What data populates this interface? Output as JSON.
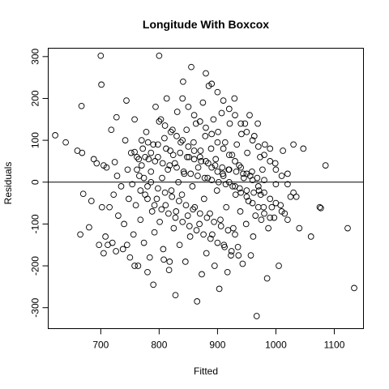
{
  "chart_data": {
    "type": "scatter",
    "title": "Longitude With Boxcox",
    "xlabel": "Fitted",
    "ylabel": "Residuals",
    "xlim": [
      610,
      1150
    ],
    "ylim": [
      -350,
      320
    ],
    "x_ticks": [
      700,
      800,
      900,
      1000,
      1100
    ],
    "y_ticks": [
      -300,
      -200,
      -100,
      0,
      100,
      200,
      300
    ],
    "x_tick_labels": [
      "700",
      "800",
      "900",
      "1000",
      "1100"
    ],
    "y_tick_labels": [
      "-300",
      "-200",
      "-100",
      "0",
      "100",
      "200",
      "300"
    ],
    "reference_line_y": 0,
    "grid": false,
    "marker": "open-circle",
    "points": [
      [
        622,
        112
      ],
      [
        640,
        95
      ],
      [
        660,
        75
      ],
      [
        665,
        -125
      ],
      [
        667,
        182
      ],
      [
        668,
        70
      ],
      [
        670,
        -28
      ],
      [
        680,
        -108
      ],
      [
        684,
        -45
      ],
      [
        688,
        55
      ],
      [
        693,
        45
      ],
      [
        697,
        -150
      ],
      [
        700,
        302
      ],
      [
        701,
        233
      ],
      [
        702,
        -60
      ],
      [
        705,
        40
      ],
      [
        708,
        -130
      ],
      [
        710,
        35
      ],
      [
        715,
        -60
      ],
      [
        718,
        125
      ],
      [
        720,
        -145
      ],
      [
        722,
        -30
      ],
      [
        724,
        48
      ],
      [
        727,
        155
      ],
      [
        728,
        15
      ],
      [
        730,
        -80
      ],
      [
        735,
        -10
      ],
      [
        738,
        -160
      ],
      [
        740,
        -100
      ],
      [
        742,
        100
      ],
      [
        744,
        195
      ],
      [
        746,
        30
      ],
      [
        748,
        -40
      ],
      [
        750,
        -180
      ],
      [
        752,
        70
      ],
      [
        754,
        -5
      ],
      [
        756,
        -125
      ],
      [
        758,
        150
      ],
      [
        760,
        -55
      ],
      [
        762,
        60
      ],
      [
        764,
        -200
      ],
      [
        766,
        15
      ],
      [
        768,
        -90
      ],
      [
        770,
        40
      ],
      [
        772,
        80
      ],
      [
        774,
        -145
      ],
      [
        776,
        -30
      ],
      [
        778,
        120
      ],
      [
        780,
        -10
      ],
      [
        782,
        55
      ],
      [
        784,
        -180
      ],
      [
        786,
        25
      ],
      [
        788,
        -70
      ],
      [
        790,
        90
      ],
      [
        792,
        -120
      ],
      [
        794,
        180
      ],
      [
        796,
        -40
      ],
      [
        798,
        60
      ],
      [
        800,
        302
      ],
      [
        801,
        -95
      ],
      [
        803,
        150
      ],
      [
        805,
        10
      ],
      [
        807,
        -160
      ],
      [
        809,
        105
      ],
      [
        811,
        -55
      ],
      [
        813,
        200
      ],
      [
        815,
        30
      ],
      [
        817,
        -210
      ],
      [
        819,
        75
      ],
      [
        821,
        -20
      ],
      [
        823,
        125
      ],
      [
        825,
        -110
      ],
      [
        827,
        45
      ],
      [
        829,
        -70
      ],
      [
        831,
        168
      ],
      [
        833,
        0
      ],
      [
        835,
        -150
      ],
      [
        837,
        95
      ],
      [
        839,
        -30
      ],
      [
        841,
        240
      ],
      [
        843,
        20
      ],
      [
        845,
        -190
      ],
      [
        847,
        125
      ],
      [
        849,
        -80
      ],
      [
        851,
        60
      ],
      [
        853,
        -130
      ],
      [
        855,
        275
      ],
      [
        857,
        -10
      ],
      [
        859,
        95
      ],
      [
        861,
        -60
      ],
      [
        863,
        140
      ],
      [
        865,
        -285
      ],
      [
        867,
        35
      ],
      [
        869,
        -100
      ],
      [
        871,
        75
      ],
      [
        873,
        -220
      ],
      [
        875,
        190
      ],
      [
        877,
        -40
      ],
      [
        879,
        110
      ],
      [
        881,
        -170
      ],
      [
        883,
        10
      ],
      [
        885,
        230
      ],
      [
        887,
        -75
      ],
      [
        889,
        80
      ],
      [
        891,
        -125
      ],
      [
        893,
        150
      ],
      [
        895,
        -200
      ],
      [
        897,
        55
      ],
      [
        899,
        -20
      ],
      [
        901,
        120
      ],
      [
        903,
        -255
      ],
      [
        905,
        -90
      ],
      [
        907,
        165
      ],
      [
        909,
        20
      ],
      [
        911,
        -150
      ],
      [
        913,
        95
      ],
      [
        915,
        -60
      ],
      [
        917,
        -215
      ],
      [
        919,
        30
      ],
      [
        921,
        140
      ],
      [
        923,
        -175
      ],
      [
        925,
        65
      ],
      [
        927,
        -110
      ],
      [
        929,
        200
      ],
      [
        931,
        -30
      ],
      [
        933,
        90
      ],
      [
        935,
        -155
      ],
      [
        937,
        40
      ],
      [
        939,
        -70
      ],
      [
        941,
        115
      ],
      [
        943,
        -195
      ],
      [
        945,
        10
      ],
      [
        947,
        140
      ],
      [
        949,
        -100
      ],
      [
        951,
        70
      ],
      [
        953,
        -45
      ],
      [
        955,
        160
      ],
      [
        957,
        -175
      ],
      [
        959,
        25
      ],
      [
        961,
        -130
      ],
      [
        963,
        110
      ],
      [
        965,
        -80
      ],
      [
        967,
        -320
      ],
      [
        969,
        140
      ],
      [
        971,
        -20
      ],
      [
        973,
        60
      ],
      [
        975,
        -90
      ],
      [
        977,
        30
      ],
      [
        979,
        -60
      ],
      [
        981,
        90
      ],
      [
        985,
        -230
      ],
      [
        987,
        -110
      ],
      [
        990,
        80
      ],
      [
        993,
        -60
      ],
      [
        997,
        -85
      ],
      [
        999,
        45
      ],
      [
        1005,
        -200
      ],
      [
        1008,
        -55
      ],
      [
        1012,
        75
      ],
      [
        1015,
        -75
      ],
      [
        1020,
        20
      ],
      [
        1025,
        -35
      ],
      [
        1030,
        90
      ],
      [
        1035,
        -35
      ],
      [
        1047,
        80
      ],
      [
        1075,
        -60
      ],
      [
        1077,
        -62
      ],
      [
        1085,
        40
      ],
      [
        1123,
        -110
      ],
      [
        1134,
        -253
      ],
      [
        705,
        -170
      ],
      [
        712,
        -150
      ],
      [
        726,
        -165
      ],
      [
        745,
        -150
      ],
      [
        758,
        -200
      ],
      [
        780,
        -215
      ],
      [
        790,
        -245
      ],
      [
        808,
        -185
      ],
      [
        818,
        -190
      ],
      [
        828,
        -270
      ],
      [
        758,
        72
      ],
      [
        765,
        55
      ],
      [
        770,
        100
      ],
      [
        776,
        60
      ],
      [
        781,
        95
      ],
      [
        786,
        70
      ],
      [
        793,
        50
      ],
      [
        798,
        90
      ],
      [
        806,
        45
      ],
      [
        812,
        80
      ],
      [
        818,
        40
      ],
      [
        824,
        65
      ],
      [
        830,
        35
      ],
      [
        836,
        70
      ],
      [
        842,
        25
      ],
      [
        848,
        60
      ],
      [
        854,
        20
      ],
      [
        860,
        55
      ],
      [
        866,
        15
      ],
      [
        872,
        50
      ],
      [
        878,
        10
      ],
      [
        884,
        45
      ],
      [
        890,
        5
      ],
      [
        896,
        40
      ],
      [
        902,
        0
      ],
      [
        908,
        35
      ],
      [
        914,
        -5
      ],
      [
        920,
        30
      ],
      [
        926,
        -10
      ],
      [
        932,
        25
      ],
      [
        938,
        -15
      ],
      [
        944,
        20
      ],
      [
        950,
        -20
      ],
      [
        956,
        15
      ],
      [
        962,
        -25
      ],
      [
        968,
        10
      ],
      [
        974,
        -30
      ],
      [
        980,
        5
      ],
      [
        990,
        -40
      ],
      [
        1000,
        -5
      ],
      [
        762,
        30
      ],
      [
        768,
        -20
      ],
      [
        774,
        10
      ],
      [
        780,
        -40
      ],
      [
        786,
        0
      ],
      [
        792,
        -55
      ],
      [
        798,
        -15
      ],
      [
        804,
        -65
      ],
      [
        810,
        -25
      ],
      [
        816,
        -75
      ],
      [
        822,
        -35
      ],
      [
        828,
        -85
      ],
      [
        834,
        -45
      ],
      [
        840,
        -95
      ],
      [
        846,
        -55
      ],
      [
        852,
        -105
      ],
      [
        858,
        -65
      ],
      [
        864,
        -115
      ],
      [
        870,
        -75
      ],
      [
        876,
        -125
      ],
      [
        882,
        -85
      ],
      [
        888,
        -135
      ],
      [
        894,
        -95
      ],
      [
        900,
        -145
      ],
      [
        906,
        -105
      ],
      [
        912,
        -155
      ],
      [
        918,
        -115
      ],
      [
        924,
        -165
      ],
      [
        930,
        -125
      ],
      [
        936,
        -175
      ],
      [
        800,
        145
      ],
      [
        810,
        135
      ],
      [
        820,
        120
      ],
      [
        830,
        110
      ],
      [
        840,
        100
      ],
      [
        850,
        85
      ],
      [
        860,
        75
      ],
      [
        870,
        60
      ],
      [
        880,
        50
      ],
      [
        890,
        35
      ],
      [
        900,
        25
      ],
      [
        910,
        15
      ],
      [
        920,
        0
      ],
      [
        930,
        -10
      ],
      [
        940,
        -25
      ],
      [
        950,
        -35
      ],
      [
        960,
        -50
      ],
      [
        970,
        -60
      ],
      [
        980,
        -75
      ],
      [
        990,
        -85
      ],
      [
        840,
        200
      ],
      [
        850,
        180
      ],
      [
        860,
        160
      ],
      [
        870,
        145
      ],
      [
        880,
        130
      ],
      [
        890,
        115
      ],
      [
        900,
        95
      ],
      [
        910,
        80
      ],
      [
        920,
        65
      ],
      [
        930,
        50
      ],
      [
        940,
        35
      ],
      [
        950,
        20
      ],
      [
        960,
        5
      ],
      [
        970,
        -10
      ],
      [
        980,
        -25
      ],
      [
        1000,
        -50
      ],
      [
        1010,
        -70
      ],
      [
        1020,
        -90
      ],
      [
        1040,
        -110
      ],
      [
        1060,
        -130
      ],
      [
        880,
        260
      ],
      [
        890,
        235
      ],
      [
        900,
        215
      ],
      [
        910,
        195
      ],
      [
        920,
        175
      ],
      [
        930,
        160
      ],
      [
        940,
        140
      ],
      [
        950,
        120
      ],
      [
        960,
        100
      ],
      [
        970,
        85
      ],
      [
        980,
        65
      ],
      [
        990,
        50
      ],
      [
        1000,
        30
      ],
      [
        1010,
        15
      ],
      [
        1020,
        -5
      ],
      [
        1030,
        -25
      ]
    ]
  }
}
